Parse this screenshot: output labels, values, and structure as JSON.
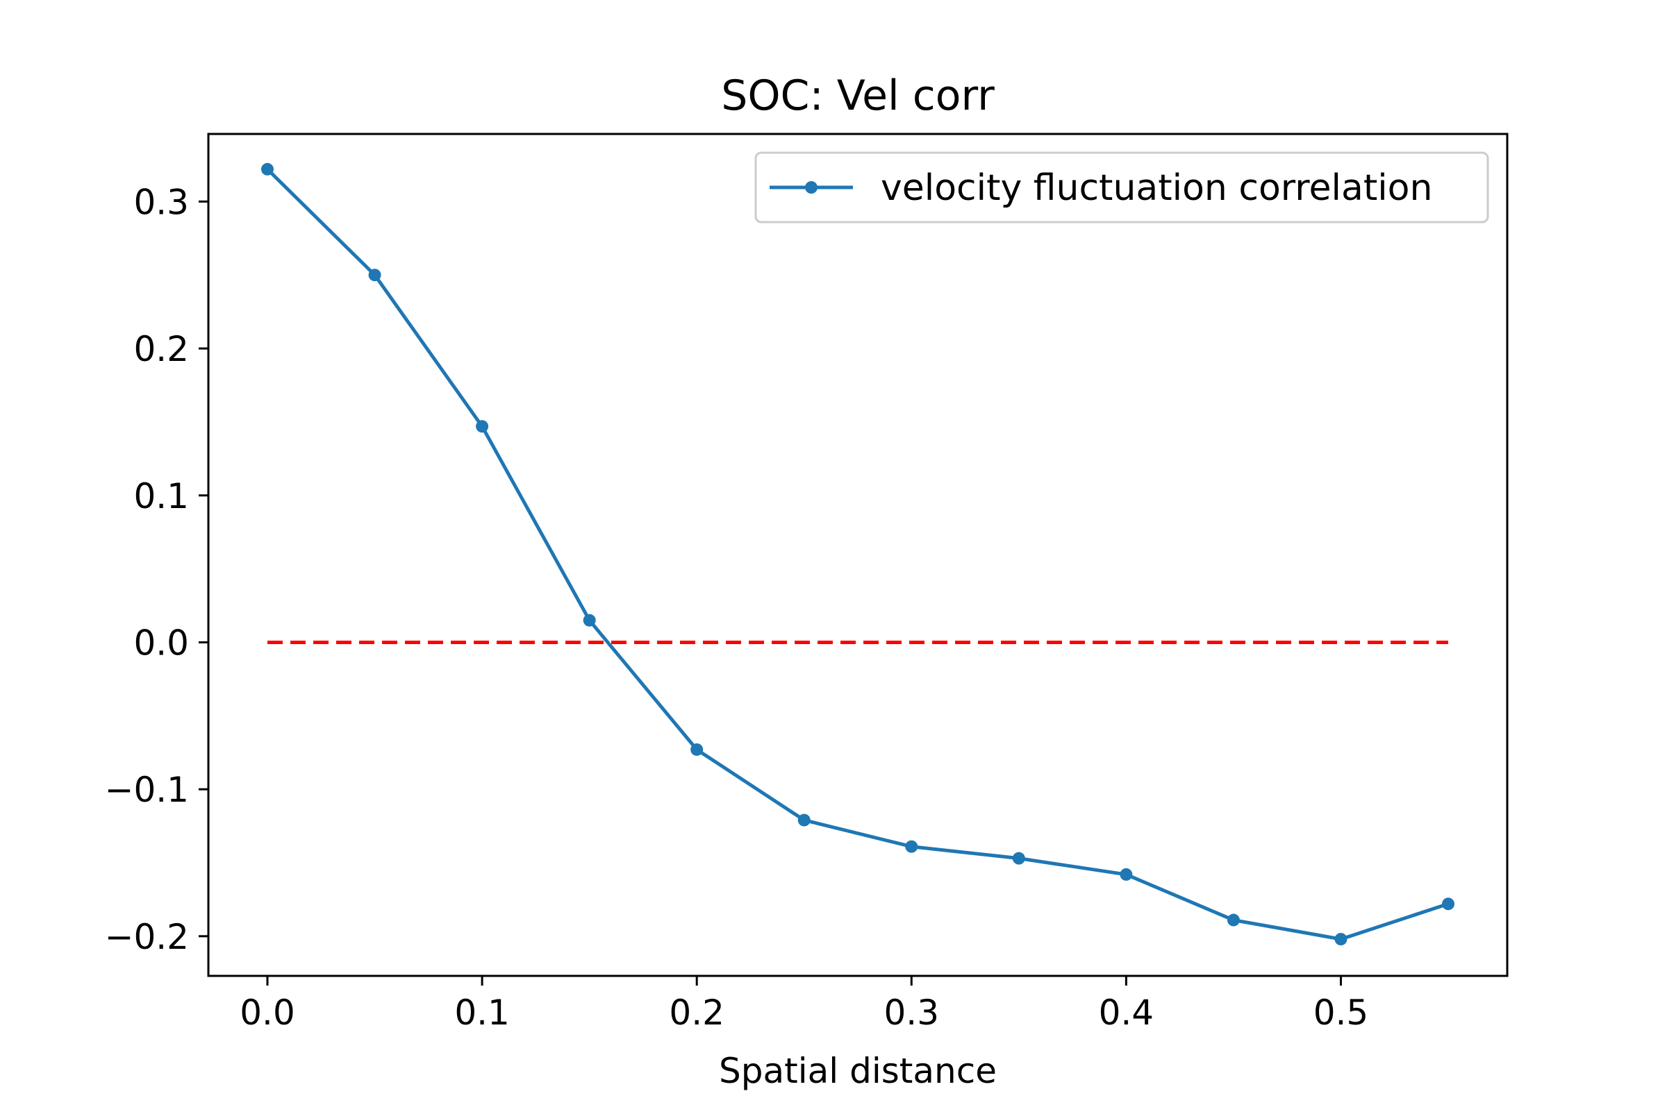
{
  "chart_data": {
    "type": "line",
    "title": "SOC: Vel corr",
    "xlabel": "Spatial distance",
    "ylabel": "",
    "xlim": [
      -0.0275,
      0.5775
    ],
    "ylim": [
      -0.227,
      0.346
    ],
    "xticks": [
      0.0,
      0.1,
      0.2,
      0.3,
      0.4,
      0.5
    ],
    "xtick_labels": [
      "0.0",
      "0.1",
      "0.2",
      "0.3",
      "0.4",
      "0.5"
    ],
    "yticks": [
      -0.2,
      -0.1,
      0.0,
      0.1,
      0.2,
      0.3
    ],
    "ytick_labels": [
      "−0.2",
      "−0.1",
      "0.0",
      "0.1",
      "0.2",
      "0.3"
    ],
    "grid": false,
    "legend_position": "top-right",
    "series": [
      {
        "name": "velocity fluctuation correlation",
        "color": "#1f77b4",
        "marker": "dot",
        "line_style": "solid",
        "x": [
          0.0,
          0.05,
          0.1,
          0.15,
          0.2,
          0.25,
          0.3,
          0.35,
          0.4,
          0.45,
          0.5,
          0.55
        ],
        "y": [
          0.322,
          0.25,
          0.147,
          0.015,
          -0.073,
          -0.121,
          -0.139,
          -0.147,
          -0.158,
          -0.189,
          -0.202,
          -0.178
        ]
      }
    ],
    "reference_lines": [
      {
        "color": "#ff0000",
        "line_style": "dashed",
        "x": [
          0.0,
          0.55
        ],
        "y": [
          0.0,
          0.0
        ]
      }
    ]
  }
}
